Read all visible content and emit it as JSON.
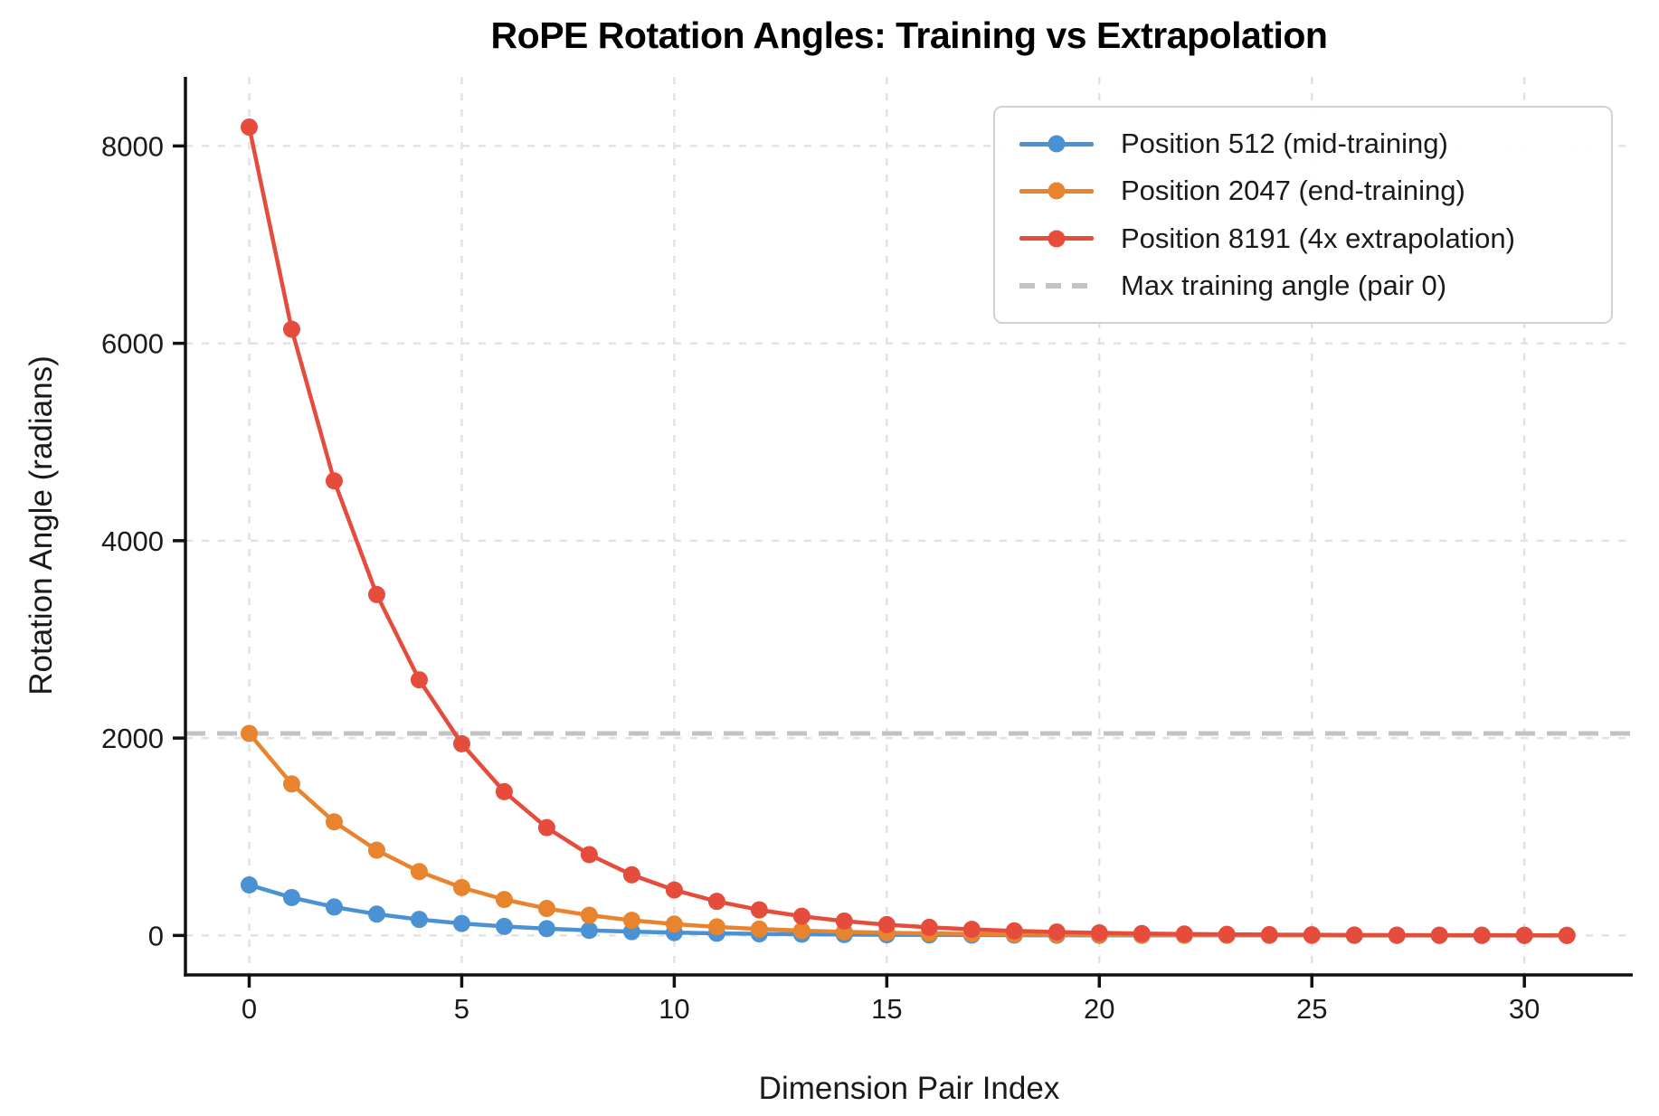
{
  "chart_data": {
    "type": "line",
    "title": "RoPE Rotation Angles: Training vs Extrapolation",
    "xlabel": "Dimension Pair Index",
    "ylabel": "Rotation Angle (radians)",
    "xlim": [
      -1.5,
      32.55
    ],
    "ylim": [
      -400,
      8700
    ],
    "xticks": [
      0,
      5,
      10,
      15,
      20,
      25,
      30
    ],
    "yticks": [
      0,
      2000,
      4000,
      6000,
      8000
    ],
    "grid": "dashed",
    "grid_color": "#e2e2e2",
    "axis_color": "#111111",
    "legend_position": "upper right",
    "x": [
      0,
      1,
      2,
      3,
      4,
      5,
      6,
      7,
      8,
      9,
      10,
      11,
      12,
      13,
      14,
      15,
      16,
      17,
      18,
      19,
      20,
      21,
      22,
      23,
      24,
      25,
      26,
      27,
      28,
      29,
      30,
      31
    ],
    "series": [
      {
        "name": "Position 512 (mid-training)",
        "color": "#4a92d4",
        "marker": "circle",
        "values": [
          512.0,
          383.9,
          287.9,
          215.9,
          161.9,
          121.4,
          91.1,
          68.3,
          51.2,
          38.4,
          28.8,
          21.6,
          16.2,
          12.1,
          9.1,
          6.8,
          5.1,
          3.8,
          2.9,
          2.2,
          1.6,
          1.2,
          0.9,
          0.7,
          0.5,
          0.4,
          0.3,
          0.2,
          0.16,
          0.12,
          0.09,
          0.07
        ]
      },
      {
        "name": "Position 2047 (end-training)",
        "color": "#e8842e",
        "marker": "circle",
        "values": [
          2047.0,
          1535.0,
          1151.1,
          863.2,
          647.3,
          485.4,
          364.0,
          273.0,
          204.7,
          153.5,
          115.1,
          86.3,
          64.7,
          48.5,
          36.4,
          27.3,
          20.5,
          15.3,
          11.5,
          8.6,
          6.5,
          4.9,
          3.6,
          2.7,
          2.0,
          1.5,
          1.2,
          0.9,
          0.6,
          0.5,
          0.4,
          0.3
        ]
      },
      {
        "name": "Position 8191 (4x extrapolation)",
        "color": "#e64c3c",
        "marker": "circle",
        "values": [
          8191.0,
          6142.3,
          4606.1,
          3454.2,
          2590.3,
          1942.4,
          1456.6,
          1092.3,
          819.1,
          614.2,
          460.6,
          345.4,
          259.0,
          194.2,
          145.7,
          109.2,
          81.9,
          61.4,
          46.1,
          34.5,
          25.9,
          19.4,
          14.6,
          10.9,
          8.2,
          6.1,
          4.6,
          3.5,
          2.6,
          1.9,
          1.5,
          1.1
        ]
      }
    ],
    "reference_line": {
      "name": "Max training angle (pair 0)",
      "value": 2047,
      "color": "#c3c3c3",
      "style": "dashed"
    }
  }
}
